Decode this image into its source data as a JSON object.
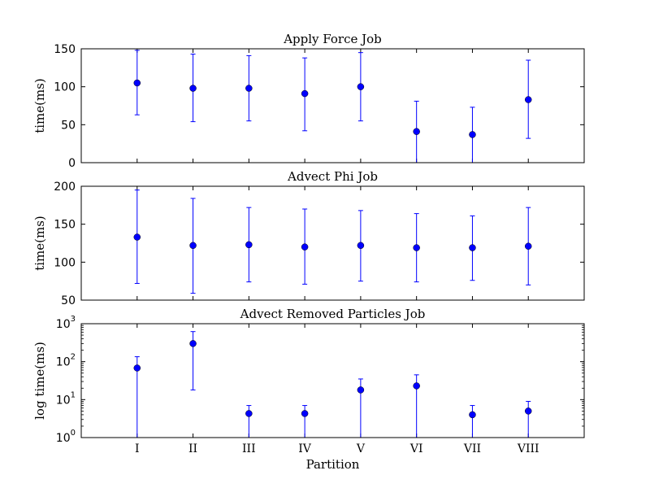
{
  "chart_data": [
    {
      "type": "scatter",
      "title": "Apply Force Job",
      "xlabel": "",
      "ylabel": "time(ms)",
      "scale": "linear",
      "ylim": [
        0,
        150
      ],
      "yticks": [
        0,
        50,
        100,
        150
      ],
      "categories": [
        "I",
        "II",
        "III",
        "IV",
        "V",
        "VI",
        "VII",
        "VIII"
      ],
      "values": [
        105,
        98,
        98,
        91,
        100,
        41,
        37,
        83
      ],
      "error_low": [
        63,
        54,
        55,
        42,
        55,
        0,
        0,
        32
      ],
      "error_high": [
        148,
        143,
        141,
        138,
        145,
        81,
        73,
        135
      ],
      "show_xticklabels": false,
      "color": "#0000ff",
      "grid": false
    },
    {
      "type": "scatter",
      "title": "Advect Phi Job",
      "xlabel": "",
      "ylabel": "time(ms)",
      "scale": "linear",
      "ylim": [
        50,
        200
      ],
      "yticks": [
        50,
        100,
        150,
        200
      ],
      "categories": [
        "I",
        "II",
        "III",
        "IV",
        "V",
        "VI",
        "VII",
        "VIII"
      ],
      "values": [
        133,
        122,
        123,
        120,
        122,
        119,
        119,
        121
      ],
      "error_low": [
        72,
        59,
        74,
        71,
        75,
        74,
        76,
        70
      ],
      "error_high": [
        195,
        184,
        172,
        170,
        168,
        164,
        161,
        172
      ],
      "show_xticklabels": false,
      "color": "#0000ff",
      "grid": false
    },
    {
      "type": "scatter",
      "title": "Advect Removed Particles Job",
      "xlabel": "Partition",
      "ylabel": "log time(ms)",
      "scale": "log",
      "ylim": [
        1,
        1000
      ],
      "yticks": [
        1,
        10,
        100,
        1000
      ],
      "ytick_exponents": [
        "0",
        "1",
        "2",
        "3"
      ],
      "categories": [
        "I",
        "II",
        "III",
        "IV",
        "V",
        "VI",
        "VII",
        "VIII"
      ],
      "values": [
        68,
        300,
        4.3,
        4.3,
        18,
        23,
        4.0,
        5.0
      ],
      "error_low": [
        1,
        18,
        1,
        1,
        1,
        1,
        1,
        1
      ],
      "error_high": [
        135,
        620,
        7,
        7,
        35,
        45,
        7,
        9
      ],
      "show_xticklabels": true,
      "color": "#0000ff",
      "grid": false
    }
  ]
}
